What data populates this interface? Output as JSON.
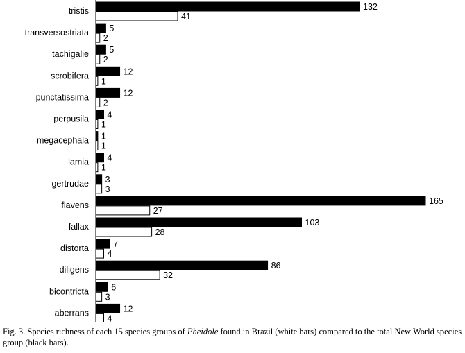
{
  "chart_data": {
    "type": "bar",
    "orientation": "horizontal",
    "categories": [
      "tristis",
      "transversostriata",
      "tachigalie",
      "scrobifera",
      "punctatissima",
      "perpusila",
      "megacephala",
      "lamia",
      "gertrudae",
      "flavens",
      "fallax",
      "distorta",
      "diligens",
      "bicontricta",
      "aberrans"
    ],
    "series": [
      {
        "fill": "#000000",
        "values": [
          132,
          5,
          5,
          12,
          12,
          4,
          1,
          4,
          3,
          165,
          103,
          7,
          86,
          6,
          12
        ]
      },
      {
        "fill": "#ffffff",
        "values": [
          41,
          2,
          2,
          1,
          2,
          1,
          1,
          1,
          3,
          27,
          28,
          4,
          32,
          3,
          4
        ]
      }
    ],
    "xlim": [
      0,
      165
    ],
    "grid": false,
    "legend": "none"
  },
  "caption": {
    "before": "Fig. 3. Species richness of each 15 species groups of ",
    "genus": "Pheidole",
    "after": " found in Brazil (white bars) compared to the total New World species group (black bars)."
  }
}
